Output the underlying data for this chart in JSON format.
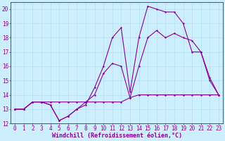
{
  "xlabel": "Windchill (Refroidissement éolien,°C)",
  "xlim": [
    -0.5,
    23.5
  ],
  "ylim": [
    12,
    20.5
  ],
  "xticks": [
    0,
    1,
    2,
    3,
    4,
    5,
    6,
    7,
    8,
    9,
    10,
    11,
    12,
    13,
    14,
    15,
    16,
    17,
    18,
    19,
    20,
    21,
    22,
    23
  ],
  "yticks": [
    12,
    13,
    14,
    15,
    16,
    17,
    18,
    19,
    20
  ],
  "bg_color": "#cceeff",
  "grid_color": "#aaddee",
  "line_color": "#880099",
  "line1_x": [
    0,
    1,
    2,
    3,
    4,
    5,
    6,
    7,
    8,
    9,
    10,
    11,
    12,
    13,
    14,
    15,
    16,
    17,
    18,
    19,
    20,
    21,
    22,
    23
  ],
  "line1_y": [
    13,
    13,
    13.5,
    13.5,
    13.3,
    12.2,
    12.5,
    13,
    13.3,
    14.5,
    16,
    18,
    18.7,
    14.2,
    18,
    20.2,
    20,
    19.8,
    19.8,
    19,
    17,
    17,
    15.2,
    14
  ],
  "line2_x": [
    0,
    1,
    2,
    3,
    4,
    5,
    6,
    7,
    8,
    9,
    10,
    11,
    12,
    13,
    14,
    15,
    16,
    17,
    18,
    19,
    20,
    21,
    22,
    23
  ],
  "line2_y": [
    13,
    13,
    13.5,
    13.5,
    13.3,
    12.2,
    12.5,
    13,
    13.5,
    14,
    15.5,
    16.2,
    16,
    13.8,
    16,
    18,
    18.5,
    18,
    18.3,
    18,
    17.8,
    17,
    15,
    14
  ],
  "line3_x": [
    0,
    1,
    2,
    3,
    4,
    5,
    6,
    7,
    8,
    9,
    10,
    11,
    12,
    13,
    14,
    15,
    16,
    17,
    18,
    19,
    20,
    21,
    22,
    23
  ],
  "line3_y": [
    13,
    13,
    13.5,
    13.5,
    13.5,
    13.5,
    13.5,
    13.5,
    13.5,
    13.5,
    13.5,
    13.5,
    13.5,
    13.8,
    14,
    14,
    14,
    14,
    14,
    14,
    14,
    14,
    14,
    14
  ],
  "font_name": "monospace",
  "xlabel_fontsize": 6.0,
  "tick_fontsize": 5.5,
  "marker_size": 2.0,
  "line_width": 0.8
}
